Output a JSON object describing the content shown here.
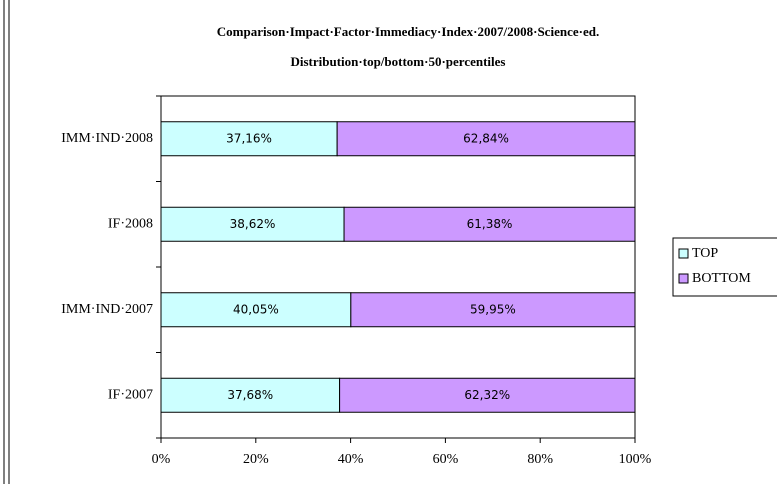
{
  "chart_data": {
    "type": "stacked_barh",
    "title": "Comparison·Impact·Factor·Immediacy·Index·2007/2008·Science·ed.",
    "subtitle": "Distribution·top/bottom·50·percentiles",
    "categories": [
      "IMM·IND·2008",
      "IF·2008",
      "IMM·IND·2007",
      "IF·2007"
    ],
    "series": [
      {
        "name": "TOP",
        "color": "#ccffff",
        "values": [
          37.16,
          38.62,
          40.05,
          37.68
        ],
        "value_labels": [
          "37,16%",
          "38,62%",
          "40,05%",
          "37,68%"
        ]
      },
      {
        "name": "BOTTOM",
        "color": "#cc99ff",
        "values": [
          62.84,
          61.38,
          59.95,
          62.32
        ],
        "value_labels": [
          "62,84%",
          "61,38%",
          "59,95%",
          "62,32%"
        ]
      }
    ],
    "xlim": [
      0,
      100
    ],
    "xticks": [
      {
        "value": 0,
        "label": "0%"
      },
      {
        "value": 20,
        "label": "20%"
      },
      {
        "value": 40,
        "label": "40%"
      },
      {
        "value": 60,
        "label": "60%"
      },
      {
        "value": 80,
        "label": "80%"
      },
      {
        "value": 100,
        "label": "100%"
      }
    ],
    "legend": "right"
  }
}
